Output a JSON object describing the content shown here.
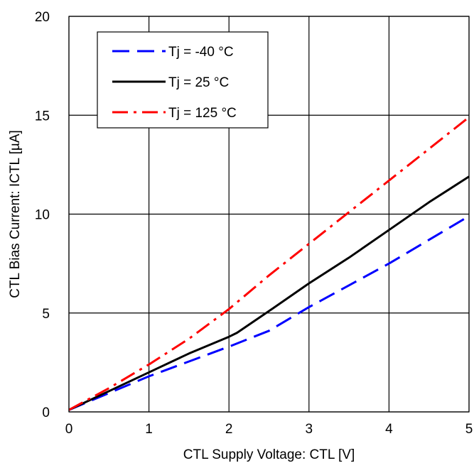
{
  "chart_data": {
    "type": "line",
    "xlabel": "CTL Supply Voltage: CTL [V]",
    "ylabel": "CTL Bias Current: ICTL  [µA]",
    "xlim": [
      0,
      5
    ],
    "ylim": [
      0,
      20
    ],
    "xticks": [
      0,
      1,
      2,
      3,
      4,
      5
    ],
    "yticks": [
      0,
      5,
      10,
      15,
      20
    ],
    "grid": true,
    "legend_position": "top-left",
    "series": [
      {
        "name": "Tj = -40 °C",
        "color": "#0000ff",
        "dash": "dashed",
        "x": [
          0,
          0.5,
          1,
          1.5,
          2,
          2.5,
          3,
          3.5,
          4,
          4.5,
          5
        ],
        "y": [
          0.1,
          0.95,
          1.8,
          2.55,
          3.3,
          4.1,
          5.3,
          6.4,
          7.5,
          8.7,
          9.9
        ]
      },
      {
        "name": "Tj = 25 °C",
        "color": "#000000",
        "dash": "solid",
        "x": [
          0,
          0.5,
          1,
          1.5,
          2,
          2.1,
          2.5,
          3,
          3.5,
          4,
          4.5,
          5
        ],
        "y": [
          0.1,
          1.05,
          2.0,
          2.95,
          3.8,
          4.0,
          5.1,
          6.5,
          7.8,
          9.2,
          10.6,
          11.9
        ]
      },
      {
        "name": "Tj = 125 °C",
        "color": "#ff0000",
        "dash": "dashdot",
        "x": [
          0,
          0.5,
          1,
          1.5,
          2,
          2.5,
          3,
          3.5,
          4,
          4.5,
          5
        ],
        "y": [
          0.1,
          1.2,
          2.4,
          3.7,
          5.2,
          6.9,
          8.5,
          10.1,
          11.7,
          13.3,
          14.9
        ]
      }
    ]
  }
}
